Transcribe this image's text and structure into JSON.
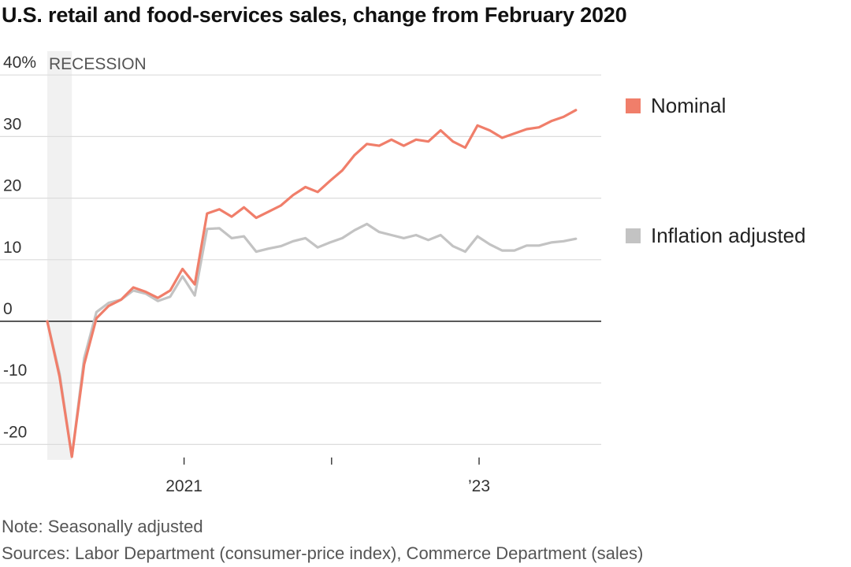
{
  "chart_data": {
    "type": "line",
    "title": "U.S. retail and food-services sales, change from February 2020",
    "y_ticks": [
      "40%",
      "30",
      "20",
      "10",
      "0",
      "-10",
      "-20"
    ],
    "y_tick_values": [
      40,
      30,
      20,
      10,
      0,
      -10,
      -20
    ],
    "ylim": [
      -22.5,
      40
    ],
    "x_ticks": [
      "2021",
      "",
      "’23"
    ],
    "x_tick_months": [
      11,
      23,
      35
    ],
    "xlim": [
      0,
      45
    ],
    "recession": {
      "label": "RECESSION",
      "start_month": 0,
      "end_month": 2
    },
    "x_index_note": "months after February 2020",
    "series": [
      {
        "name": "Nominal",
        "color": "#f07e6a",
        "values": [
          0,
          -9,
          -22,
          -7,
          0.5,
          2.5,
          3.5,
          5.5,
          4.8,
          3.8,
          5,
          8.5,
          6,
          17.5,
          18.2,
          17,
          18.5,
          16.8,
          17.8,
          18.8,
          20.5,
          21.8,
          21,
          22.8,
          24.5,
          27,
          28.8,
          28.5,
          29.5,
          28.5,
          29.5,
          29.2,
          31,
          29.2,
          28.2,
          31.8,
          31,
          29.8,
          30.5,
          31.2,
          31.5,
          32.5,
          33.2,
          34.3
        ]
      },
      {
        "name": "Inflation adjusted",
        "color": "#c3c3c3",
        "values": [
          0,
          -8.5,
          -22,
          -6,
          1.5,
          3,
          3.5,
          5,
          4.5,
          3.3,
          4,
          7.3,
          4.2,
          15,
          15.1,
          13.5,
          13.8,
          11.3,
          11.8,
          12.2,
          13,
          13.5,
          12,
          12.8,
          13.5,
          14.8,
          15.8,
          14.5,
          14,
          13.5,
          14,
          13.2,
          14,
          12.2,
          11.3,
          13.8,
          12.5,
          11.5,
          11.5,
          12.3,
          12.3,
          12.8,
          13,
          13.4
        ]
      }
    ],
    "legend_placement": "right",
    "grid": true
  },
  "notes": {
    "note": "Note: Seasonally adjusted",
    "sources": "Sources: Labor Department (consumer-price index), Commerce Department (sales)"
  }
}
